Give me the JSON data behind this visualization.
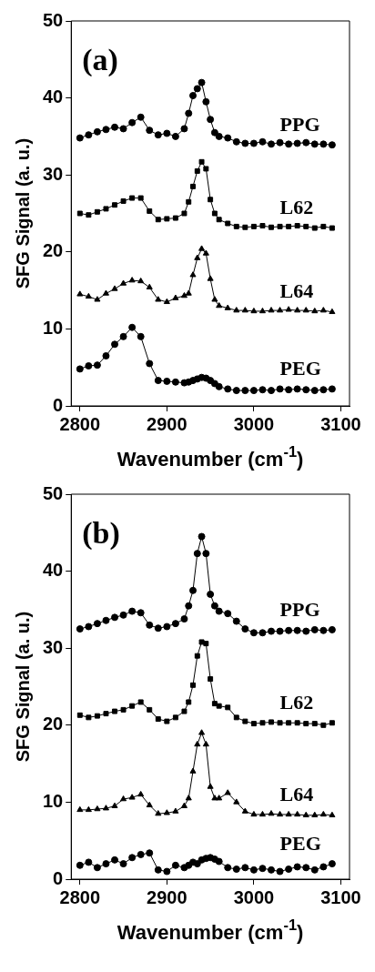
{
  "chart_data": [
    {
      "type": "line",
      "title": "(a)",
      "xlabel": "Wavenumber (cm$^{-1}$)",
      "ylabel": "SFG Signal (a. u.)",
      "x": [
        2800,
        2810,
        2820,
        2830,
        2840,
        2850,
        2860,
        2870,
        2880,
        2890,
        2900,
        2910,
        2920,
        2925,
        2930,
        2935,
        2940,
        2945,
        2950,
        2955,
        2960,
        2970,
        2980,
        2990,
        3000,
        3010,
        3020,
        3030,
        3040,
        3050,
        3060,
        3070,
        3080,
        3090
      ],
      "xlim": [
        2790,
        3110
      ],
      "xticks": [
        2800,
        2900,
        3000,
        3100
      ],
      "ylim": [
        0,
        50
      ],
      "yticks": [
        0,
        10,
        20,
        30,
        40,
        50
      ],
      "grid": false,
      "legend": false,
      "line_style": "solid",
      "series": [
        {
          "name": "PPG",
          "color": "#000000",
          "marker": "circle",
          "values": [
            34.8,
            35.2,
            35.6,
            35.9,
            36.2,
            36.0,
            36.8,
            37.5,
            35.8,
            35.2,
            35.4,
            35.0,
            36.0,
            38.0,
            40.3,
            41.2,
            42.0,
            39.5,
            37.2,
            35.5,
            35.0,
            34.8,
            34.3,
            34.1,
            34.1,
            34.3,
            34.0,
            34.2,
            34.0,
            34.1,
            34.2,
            34.0,
            34.0,
            33.9
          ]
        },
        {
          "name": "L62",
          "color": "#000000",
          "marker": "square",
          "values": [
            25.0,
            24.8,
            25.2,
            25.6,
            26.1,
            26.6,
            27.0,
            27.0,
            25.3,
            24.2,
            24.3,
            24.4,
            25.0,
            26.5,
            28.5,
            30.5,
            31.7,
            30.8,
            26.8,
            25.0,
            24.2,
            23.7,
            23.3,
            23.2,
            23.3,
            23.4,
            23.2,
            23.3,
            23.3,
            23.4,
            23.3,
            23.1,
            23.3,
            23.1
          ]
        },
        {
          "name": "L64",
          "color": "#000000",
          "marker": "triangle",
          "values": [
            14.5,
            14.2,
            13.8,
            14.6,
            15.2,
            15.9,
            16.3,
            16.2,
            15.4,
            13.8,
            13.5,
            14.0,
            14.3,
            14.6,
            17.0,
            19.2,
            20.4,
            19.8,
            16.5,
            13.8,
            13.0,
            12.7,
            12.4,
            12.4,
            12.3,
            12.3,
            12.4,
            12.4,
            12.5,
            12.4,
            12.4,
            12.3,
            12.4,
            12.2
          ]
        },
        {
          "name": "PEG",
          "color": "#000000",
          "marker": "circle",
          "values": [
            4.8,
            5.2,
            5.3,
            6.5,
            8.0,
            9.0,
            10.2,
            9.0,
            5.5,
            3.3,
            3.2,
            3.1,
            3.0,
            3.1,
            3.3,
            3.5,
            3.7,
            3.6,
            3.3,
            2.9,
            2.5,
            2.2,
            2.0,
            2.0,
            2.0,
            2.1,
            2.0,
            2.2,
            2.1,
            2.2,
            2.1,
            2.0,
            2.1,
            2.2
          ]
        }
      ]
    },
    {
      "type": "line",
      "title": "(b)",
      "xlabel": "Wavenumber (cm$^{-1}$)",
      "ylabel": "SFG Signal (a. u.)",
      "x": [
        2800,
        2810,
        2820,
        2830,
        2840,
        2850,
        2860,
        2870,
        2880,
        2890,
        2900,
        2910,
        2920,
        2925,
        2930,
        2935,
        2940,
        2945,
        2950,
        2955,
        2960,
        2970,
        2980,
        2990,
        3000,
        3010,
        3020,
        3030,
        3040,
        3050,
        3060,
        3070,
        3080,
        3090
      ],
      "xlim": [
        2790,
        3110
      ],
      "xticks": [
        2800,
        2900,
        3000,
        3100
      ],
      "ylim": [
        0,
        50
      ],
      "yticks": [
        0,
        10,
        20,
        30,
        40,
        50
      ],
      "grid": false,
      "legend": false,
      "line_style": "solid",
      "series": [
        {
          "name": "PPG",
          "color": "#000000",
          "marker": "circle",
          "values": [
            32.5,
            32.8,
            33.2,
            33.6,
            34.0,
            34.3,
            34.8,
            34.6,
            33.0,
            32.6,
            32.8,
            33.2,
            33.8,
            35.5,
            37.5,
            42.3,
            44.5,
            42.3,
            37.0,
            35.5,
            34.8,
            34.5,
            33.5,
            32.5,
            32.0,
            32.0,
            32.2,
            32.2,
            32.3,
            32.3,
            32.2,
            32.4,
            32.3,
            32.4
          ]
        },
        {
          "name": "L62",
          "color": "#000000",
          "marker": "square",
          "values": [
            21.3,
            21.0,
            21.2,
            21.5,
            21.8,
            22.0,
            22.5,
            23.0,
            22.0,
            20.8,
            20.5,
            21.0,
            21.8,
            23.0,
            25.2,
            29.0,
            30.8,
            30.6,
            26.0,
            22.8,
            22.5,
            22.3,
            21.0,
            20.5,
            20.2,
            20.3,
            20.4,
            20.3,
            20.3,
            20.3,
            20.2,
            20.2,
            20.0,
            20.3
          ]
        },
        {
          "name": "L64",
          "color": "#000000",
          "marker": "triangle",
          "values": [
            9.0,
            9.0,
            9.1,
            9.2,
            9.5,
            10.4,
            10.6,
            11.0,
            9.6,
            8.5,
            8.6,
            8.8,
            9.5,
            10.5,
            14.0,
            17.5,
            19.0,
            17.5,
            12.0,
            10.5,
            10.5,
            11.2,
            10.0,
            8.8,
            8.4,
            8.4,
            8.5,
            8.4,
            8.4,
            8.4,
            8.3,
            8.3,
            8.4,
            8.3
          ]
        },
        {
          "name": "PEG",
          "color": "#000000",
          "marker": "circle",
          "values": [
            1.8,
            2.2,
            1.5,
            2.0,
            2.5,
            2.0,
            2.8,
            3.2,
            3.4,
            1.2,
            1.0,
            1.8,
            1.5,
            1.8,
            2.2,
            2.0,
            2.5,
            2.7,
            2.8,
            2.6,
            2.3,
            1.5,
            1.3,
            1.5,
            1.2,
            1.4,
            1.2,
            1.0,
            1.3,
            1.6,
            1.5,
            1.2,
            1.6,
            2.0
          ]
        }
      ]
    }
  ]
}
